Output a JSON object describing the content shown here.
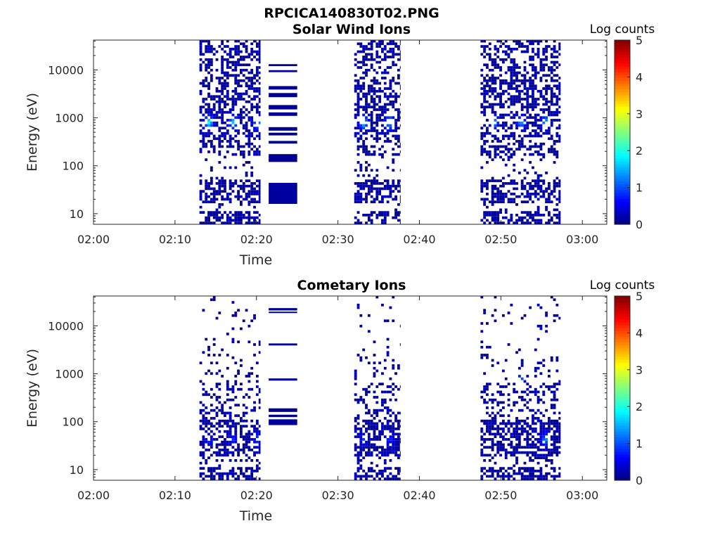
{
  "figure_title": "RPCICA140830T02.PNG",
  "colormap_name": "jet",
  "chart_data": [
    {
      "type": "heatmap",
      "title": "Solar Wind Ions",
      "xlabel": "Time",
      "ylabel": "Energy (eV)",
      "x_ticks": [
        "02:00",
        "02:10",
        "02:20",
        "02:30",
        "02:40",
        "02:50",
        "03:00"
      ],
      "xlim": [
        "02:00",
        "03:03"
      ],
      "y_scale": "log",
      "y_ticks": [
        "10",
        "100",
        "1000",
        "10000"
      ],
      "ylim": [
        6,
        42000
      ],
      "colorbar": {
        "label": "Log counts",
        "range": [
          0,
          5
        ],
        "ticks": [
          "0",
          "1",
          "2",
          "3",
          "4",
          "5"
        ]
      },
      "bursts": [
        {
          "start": "02:13",
          "end": "02:20:30",
          "peaks": [
            [
              "02:14:00",
              760,
              2.0
            ],
            [
              "02:17:00",
              760,
              1.8
            ],
            [
              "02:20:00",
              760,
              1.7
            ]
          ]
        },
        {
          "start": "02:32",
          "end": "02:37:40",
          "peaks": [
            [
              "02:33:00",
              760,
              1.9
            ],
            [
              "02:36:10",
              760,
              1.8
            ]
          ]
        },
        {
          "start": "02:47:30",
          "end": "02:57:20",
          "peaks": [
            [
              "02:49:00",
              760,
              1.7
            ],
            [
              "02:52:20",
              760,
              1.6
            ],
            [
              "02:55:20",
              760,
              1.7
            ]
          ]
        }
      ],
      "bands": [
        {
          "start": "02:21:30",
          "end": "02:25",
          "energies": [
            [
              12000,
              13200,
              0.1
            ],
            [
              9000,
              9900,
              0.1
            ],
            [
              3900,
              4600,
              0.1
            ],
            [
              2700,
              3300,
              0.1
            ],
            [
              1500,
              1850,
              0.1
            ],
            [
              1100,
              1300,
              0.1
            ],
            [
              540,
              640,
              0.1
            ],
            [
              430,
              490,
              0.1
            ],
            [
              290,
              330,
              0.1
            ],
            [
              120,
              175,
              0.1
            ],
            [
              16,
              44,
              0.15
            ]
          ]
        }
      ]
    },
    {
      "type": "heatmap",
      "title": "Cometary Ions",
      "xlabel": "Time",
      "ylabel": "Energy (eV)",
      "x_ticks": [
        "02:00",
        "02:10",
        "02:20",
        "02:30",
        "02:40",
        "02:50",
        "03:00"
      ],
      "xlim": [
        "02:00",
        "03:03"
      ],
      "y_scale": "log",
      "y_ticks": [
        "10",
        "100",
        "1000",
        "10000"
      ],
      "ylim": [
        6,
        42000
      ],
      "colorbar": {
        "label": "Log counts",
        "range": [
          0,
          5
        ],
        "ticks": [
          "0",
          "1",
          "2",
          "3",
          "4",
          "5"
        ]
      },
      "bursts": [
        {
          "start": "02:13",
          "end": "02:20:30",
          "peaks": [
            [
              "02:14:00",
              40,
              1.0
            ],
            [
              "02:17:00",
              40,
              0.9
            ],
            [
              "02:20:00",
              40,
              1.1
            ]
          ]
        },
        {
          "start": "02:32",
          "end": "02:37:40",
          "peaks": [
            [
              "02:33:00",
              40,
              0.9
            ],
            [
              "02:36:10",
              40,
              0.9
            ]
          ]
        },
        {
          "start": "02:47:30",
          "end": "02:57:20",
          "peaks": [
            [
              "02:49:00",
              760,
              1.3
            ],
            [
              "02:52:20",
              760,
              1.2
            ],
            [
              "02:55:20",
              40,
              1.4
            ]
          ]
        }
      ],
      "bands": [
        {
          "start": "02:21:30",
          "end": "02:25",
          "energies": [
            [
              21000,
              23500,
              0.1
            ],
            [
              18500,
              19800,
              0.1
            ],
            [
              3900,
              4300,
              0.1
            ],
            [
              720,
              800,
              0.1
            ],
            [
              160,
              190,
              0.1
            ],
            [
              125,
              140,
              0.1
            ],
            [
              85,
              112,
              0.15
            ]
          ]
        }
      ]
    }
  ]
}
